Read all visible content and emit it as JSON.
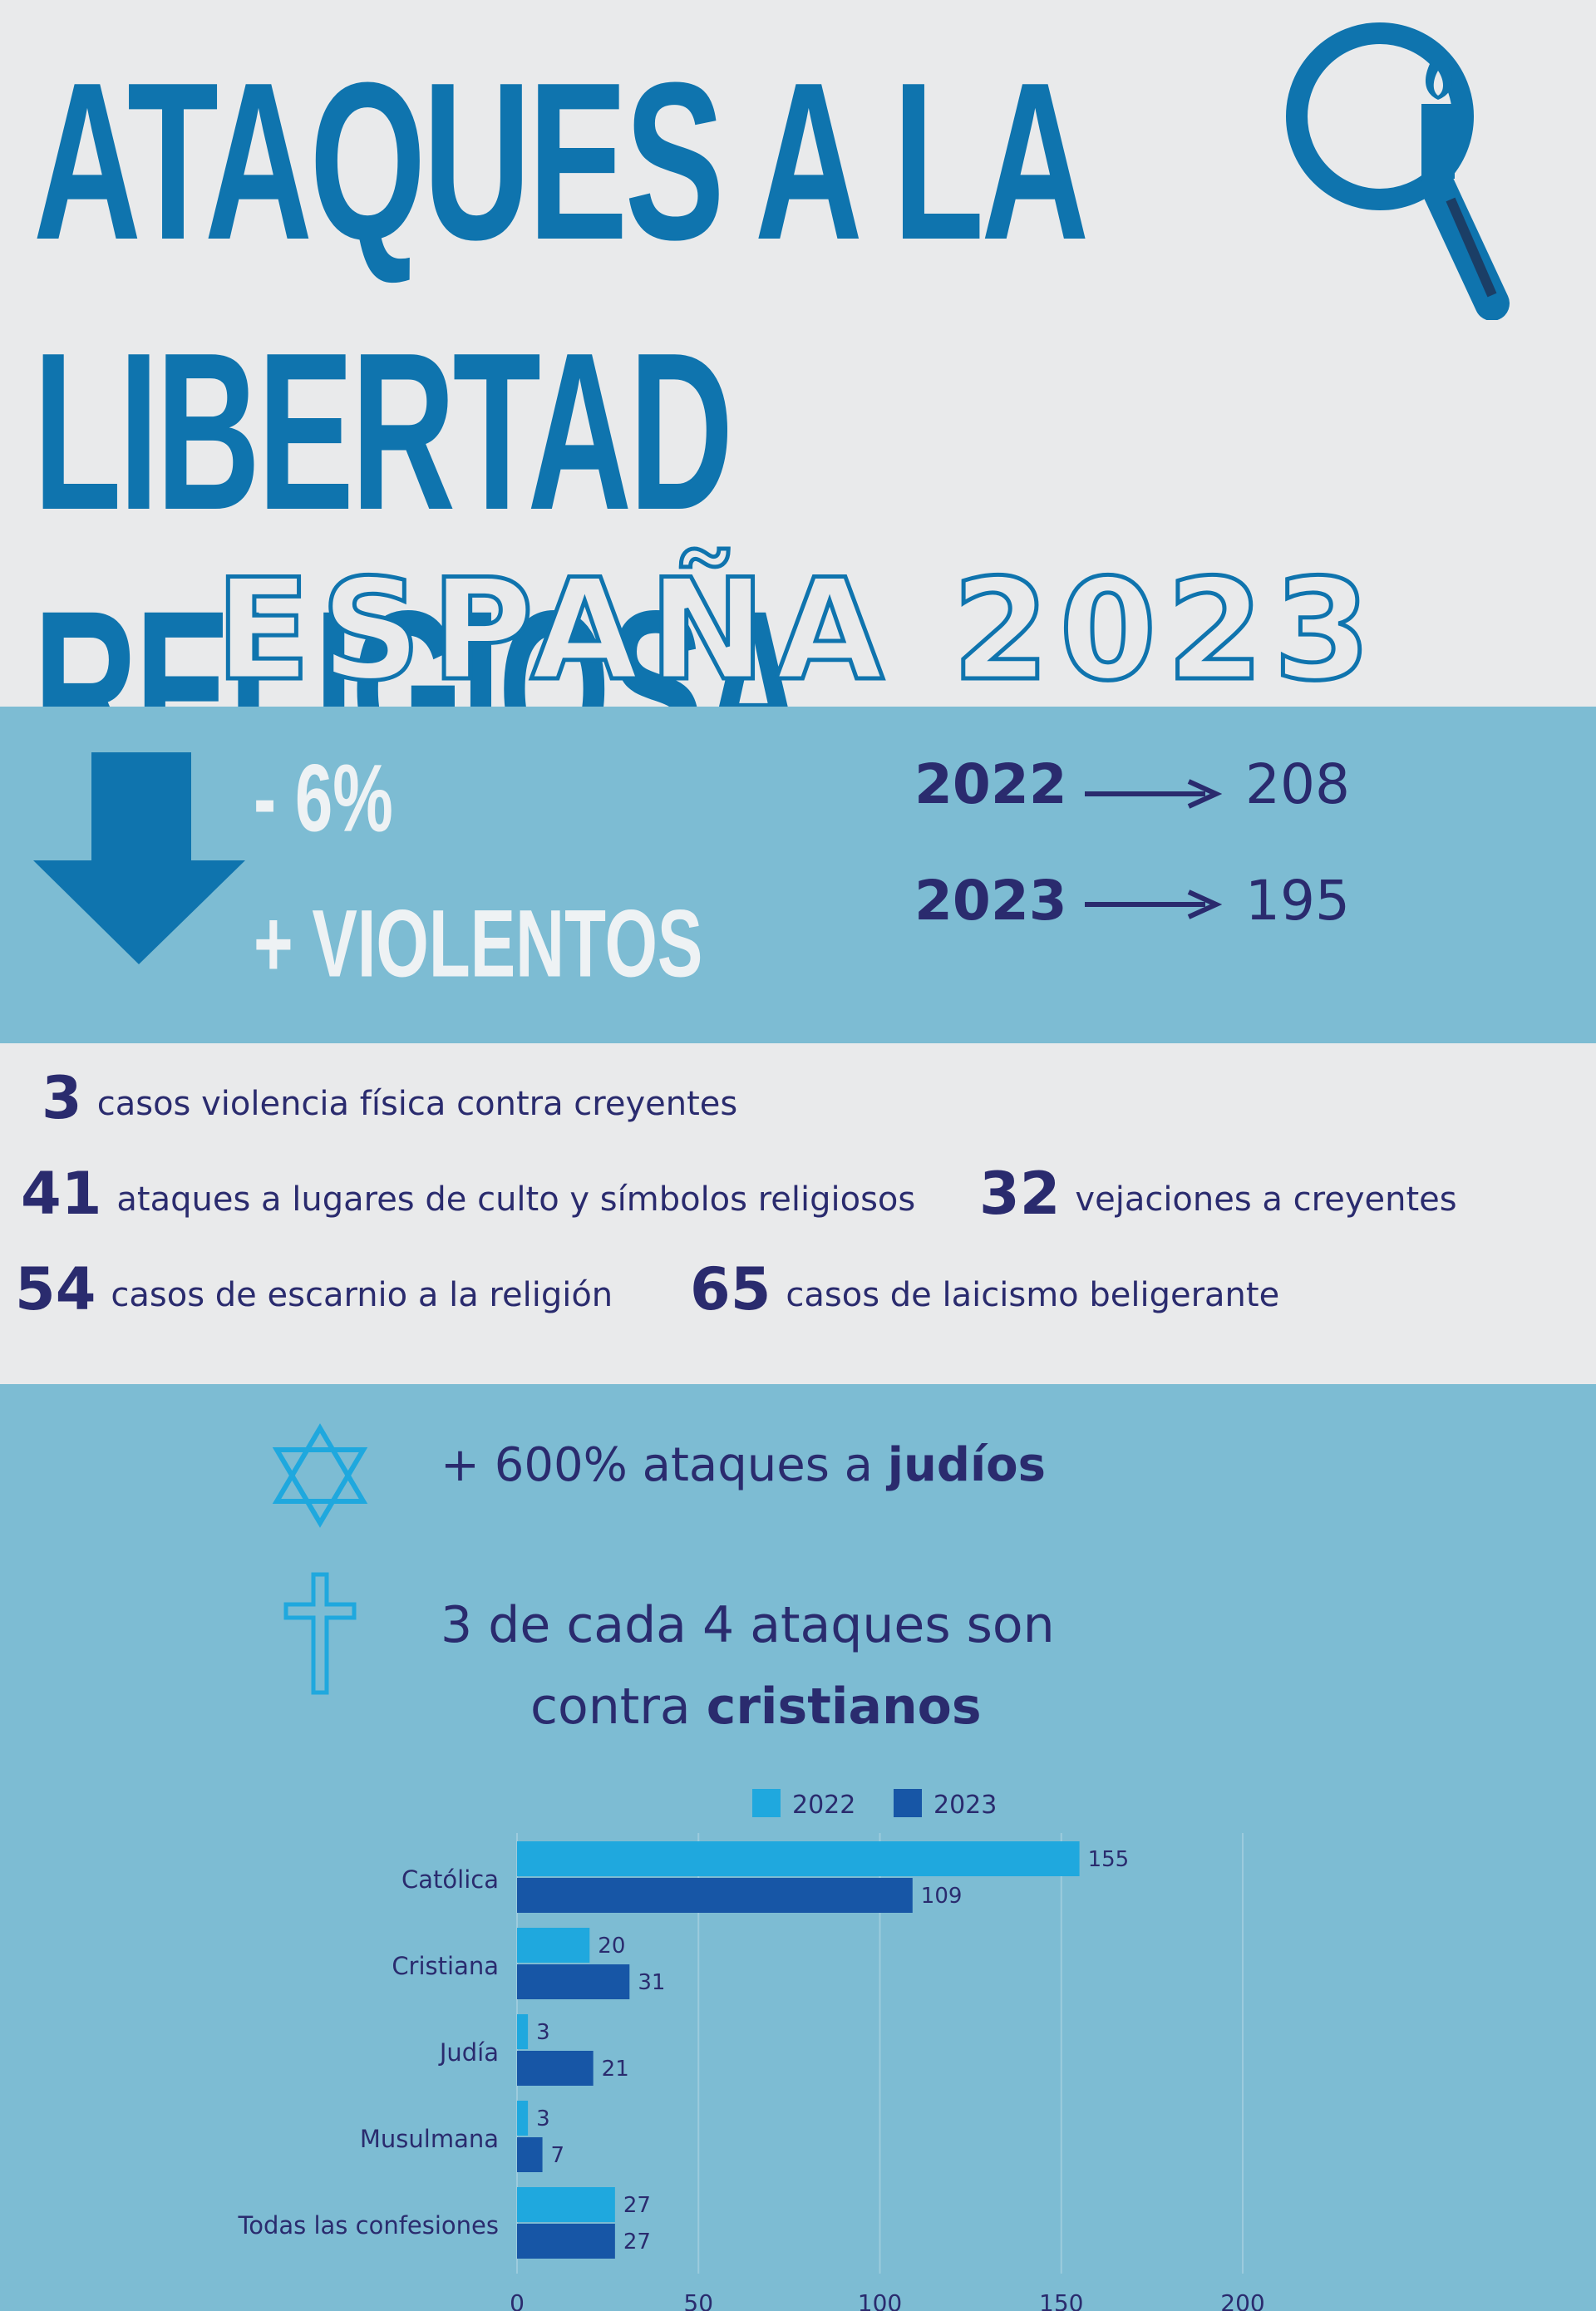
{
  "header": {
    "title_line1": "ATAQUES A LA",
    "title_line2": "LIBERTAD RELIGIOSA",
    "subtitle": "ESPAÑA 2023",
    "icon": "magnifier-candle-icon"
  },
  "summary": {
    "change_pct": "- 6%",
    "violent_label": "+ VIOLENTOS",
    "icon": "arrow-down-icon",
    "year_a": "2022",
    "value_a": "208",
    "year_b": "2023",
    "value_b": "195"
  },
  "stats": [
    {
      "num": "3",
      "text": "casos violencia física contra creyentes"
    },
    {
      "num": "41",
      "text": "ataques a lugares de culto y símbolos religiosos"
    },
    {
      "num": "32",
      "text": "vejaciones a creyentes"
    },
    {
      "num": "54",
      "text": "casos de escarnio a la religión"
    },
    {
      "num": "65",
      "text": "casos de laicismo beligerante"
    }
  ],
  "highlights": {
    "judios_prefix": "+ 600% ataques a ",
    "judios_kw": "judíos",
    "cristianos_line1": "3 de cada 4 ataques son",
    "cristianos_prefix": "contra ",
    "cristianos_kw": "cristianos",
    "icons": [
      "star-of-david-icon",
      "cross-icon"
    ]
  },
  "colors": {
    "title_blue": "#0f74ae",
    "band_blue": "#7dbcd3",
    "navy_text": "#2a2b6e",
    "series_2022": "#1fa8de",
    "series_2023": "#1756a6"
  },
  "chart_data": {
    "type": "bar",
    "orientation": "horizontal",
    "categories": [
      "Católica",
      "Cristiana",
      "Judía",
      "Musulmana",
      "Todas las confesiones"
    ],
    "series": [
      {
        "name": "2022",
        "values": [
          155,
          20,
          3,
          3,
          27
        ]
      },
      {
        "name": "2023",
        "values": [
          109,
          31,
          21,
          7,
          27
        ]
      }
    ],
    "xlim": [
      0,
      200
    ],
    "xticks": [
      0,
      50,
      100,
      150,
      200
    ],
    "grid": true,
    "legend": "top"
  }
}
